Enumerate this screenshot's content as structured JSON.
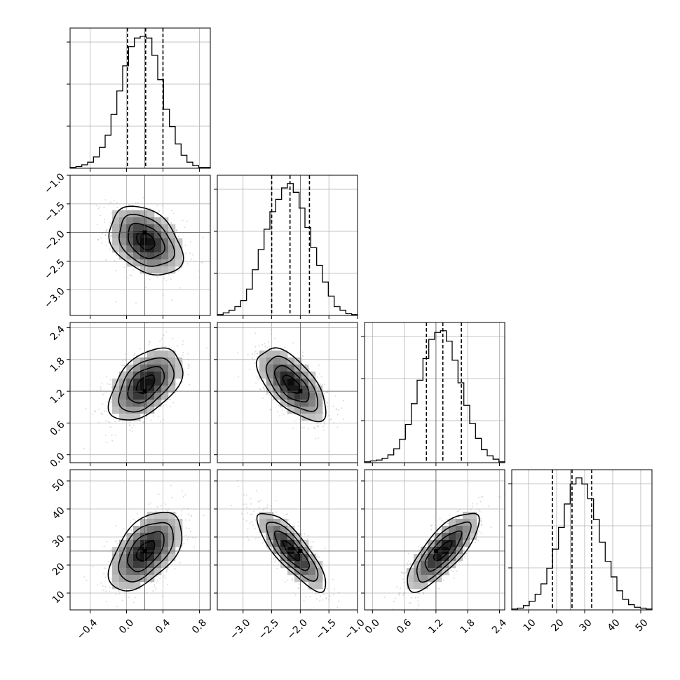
{
  "chart_data": {
    "type": "corner",
    "params": [
      {
        "ticks": [
          -0.4,
          0.0,
          0.4,
          0.8
        ],
        "tick_labels": [
          "−0.4",
          "0.0",
          "0.4",
          "0.8"
        ],
        "range": [
          -0.62,
          0.92
        ],
        "mean": 0.21,
        "sd": 0.2,
        "truth": 0.2,
        "quantiles": [
          0.01,
          0.21,
          0.4
        ],
        "hist_counts": [
          1,
          2,
          4,
          7,
          13,
          24,
          38,
          62,
          89,
          118,
          140,
          150,
          152,
          150,
          130,
          102,
          68,
          48,
          28,
          15,
          7,
          3,
          1,
          1
        ]
      },
      {
        "ticks": [
          -3.0,
          -2.5,
          -2.0,
          -1.5,
          -1.0
        ],
        "tick_labels": [
          "−3.0",
          "−2.5",
          "−2.0",
          "−1.5",
          "−1.0"
        ],
        "range": [
          -3.45,
          -1.0
        ],
        "mean": -2.15,
        "sd": 0.3,
        "truth": -2.0,
        "quantiles": [
          -2.5,
          -2.18,
          -1.84
        ],
        "hist_counts": [
          1,
          3,
          6,
          10,
          17,
          30,
          52,
          75,
          98,
          118,
          132,
          145,
          150,
          140,
          122,
          100,
          77,
          57,
          38,
          22,
          10,
          6,
          2,
          1
        ]
      },
      {
        "ticks": [
          0.0,
          0.6,
          1.2,
          1.8,
          2.4
        ],
        "tick_labels": [
          "0.0",
          "0.6",
          "1.2",
          "1.8",
          "2.4"
        ],
        "range": [
          -0.15,
          2.5
        ],
        "mean": 1.33,
        "sd": 0.34,
        "truth": 1.2,
        "quantiles": [
          1.02,
          1.33,
          1.68
        ],
        "hist_counts": [
          1,
          2,
          3,
          5,
          9,
          16,
          27,
          44,
          68,
          95,
          120,
          142,
          150,
          152,
          140,
          118,
          92,
          66,
          45,
          28,
          15,
          8,
          4,
          1
        ]
      },
      {
        "ticks": [
          10,
          20,
          30,
          40,
          50
        ],
        "tick_labels": [
          "10",
          "20",
          "30",
          "40",
          "50"
        ],
        "range": [
          4.0,
          54.0
        ],
        "mean": 25.0,
        "sd": 7.0,
        "truth": 25.0,
        "quantiles": [
          18.5,
          25.5,
          32.5
        ],
        "hist_counts": [
          1,
          2,
          5,
          10,
          18,
          30,
          48,
          70,
          95,
          122,
          145,
          152,
          145,
          128,
          104,
          78,
          56,
          38,
          22,
          12,
          6,
          3,
          2,
          1
        ]
      }
    ],
    "correlations": [
      [
        1.0,
        -0.35,
        0.48,
        0.52
      ],
      [
        -0.35,
        1.0,
        -0.62,
        -0.82
      ],
      [
        0.48,
        -0.62,
        1.0,
        0.78
      ],
      [
        0.52,
        -0.82,
        0.78,
        1.0
      ]
    ],
    "contour_levels_sigma": [
      0.5,
      1.0,
      1.5,
      2.0
    ],
    "grid": true
  }
}
